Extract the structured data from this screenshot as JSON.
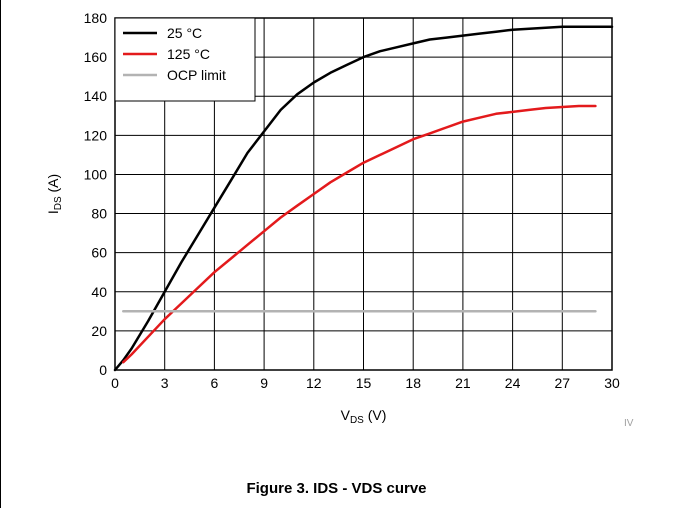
{
  "caption": "Figure 3. IDS - VDS curve",
  "watermark": "IV",
  "colors": {
    "series_25": "#000000",
    "series_125": "#e31a1c",
    "series_ocp": "#b3b3b3"
  },
  "chart_data": {
    "type": "line",
    "title": "",
    "xlabel": {
      "main": "V",
      "sub": "DS",
      "unit": " (V)"
    },
    "ylabel": {
      "main": "I",
      "sub": "DS",
      "unit": " (A)"
    },
    "xlim": [
      0,
      30
    ],
    "ylim": [
      0,
      180
    ],
    "xticks": [
      "0",
      "3",
      "6",
      "9",
      "12",
      "15",
      "18",
      "21",
      "24",
      "27",
      "30"
    ],
    "yticks": [
      "0",
      "20",
      "40",
      "60",
      "80",
      "100",
      "120",
      "140",
      "160",
      "180"
    ],
    "grid": true,
    "legend_position": "top-left",
    "series": [
      {
        "name": "25 °C",
        "color": "#000000",
        "x": [
          0,
          0.5,
          1,
          2,
          3,
          4,
          5,
          6,
          7,
          8,
          9,
          10,
          11,
          12,
          13,
          14,
          15,
          16,
          17,
          18,
          19,
          20,
          21,
          22,
          23,
          24,
          25,
          26,
          27,
          28,
          29,
          30
        ],
        "y": [
          0,
          5,
          11,
          25,
          40,
          55,
          69,
          83,
          97,
          111,
          122,
          133,
          141,
          147,
          152,
          156,
          160,
          163,
          165,
          167,
          169,
          170,
          171,
          172,
          173,
          174,
          174.5,
          175,
          175.5,
          175.5,
          175.5,
          175.5
        ]
      },
      {
        "name": "125 °C",
        "color": "#e31a1c",
        "x": [
          0.5,
          1,
          2,
          3,
          4,
          5,
          6,
          7,
          8,
          9,
          10,
          11,
          12,
          13,
          14,
          15,
          16,
          17,
          18,
          19,
          20,
          21,
          22,
          23,
          24,
          25,
          26,
          27,
          28,
          29
        ],
        "y": [
          4,
          8,
          17,
          26,
          34,
          42,
          50,
          57,
          64,
          71,
          78,
          84,
          90,
          96,
          101,
          106,
          110,
          114,
          118,
          121,
          124,
          127,
          129,
          131,
          132,
          133,
          134,
          134.5,
          135,
          135
        ]
      },
      {
        "name": "OCP limit",
        "color": "#b3b3b3",
        "x": [
          0.5,
          29
        ],
        "y": [
          30,
          30
        ]
      }
    ]
  }
}
